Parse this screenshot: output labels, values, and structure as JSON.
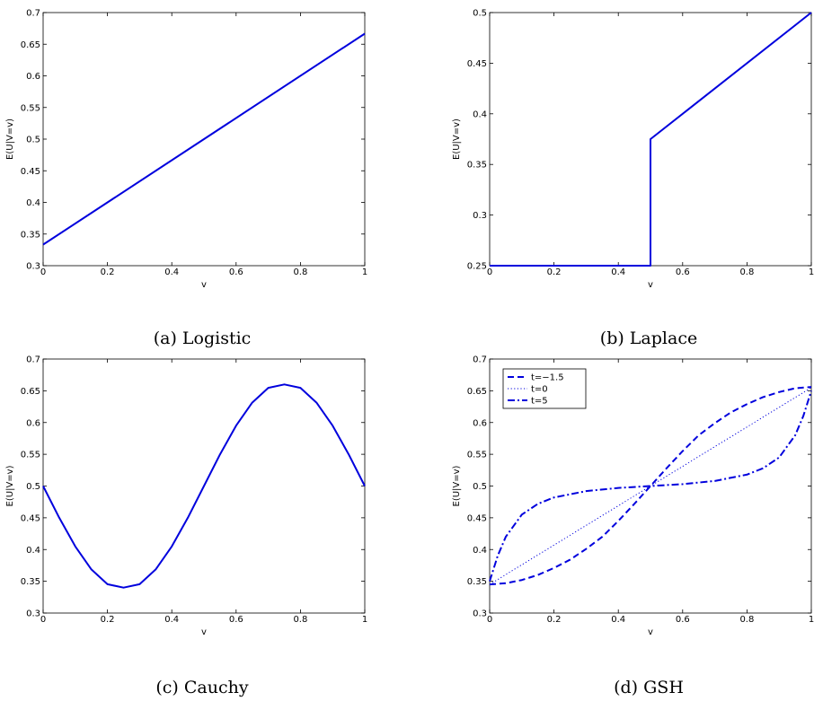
{
  "captions": [
    "(a) Logistic",
    "(b) Laplace",
    "(c) Cauchy",
    "(d) GSH"
  ],
  "chart_data": [
    {
      "type": "line",
      "xlabel": "v",
      "ylabel": "E(U|V=v)",
      "xlim": [
        0,
        1
      ],
      "ylim": [
        0.3,
        0.7
      ],
      "xticks": [
        "0",
        "0.2",
        "0.4",
        "0.6",
        "0.8",
        "1"
      ],
      "yticks": [
        "0.3",
        "0.35",
        "0.4",
        "0.45",
        "0.5",
        "0.55",
        "0.6",
        "0.65",
        "0.7"
      ],
      "series": [
        {
          "x": [
            0,
            1
          ],
          "y": [
            0.3333,
            0.6667
          ],
          "style": "solid"
        }
      ]
    },
    {
      "type": "line",
      "xlabel": "v",
      "ylabel": "E(U|V=v)",
      "xlim": [
        0,
        1
      ],
      "ylim": [
        0.25,
        0.5
      ],
      "xticks": [
        "0",
        "0.2",
        "0.4",
        "0.6",
        "0.8",
        "1"
      ],
      "yticks": [
        "0.25",
        "0.3",
        "0.35",
        "0.4",
        "0.45",
        "0.5"
      ],
      "series": [
        {
          "x": [
            0,
            0.5,
            0.5,
            1
          ],
          "y": [
            0.25,
            0.25,
            0.375,
            0.5
          ],
          "style": "solid"
        }
      ]
    },
    {
      "type": "line",
      "xlabel": "v",
      "ylabel": "E(U|V=v)",
      "xlim": [
        0,
        1
      ],
      "ylim": [
        0.3,
        0.7
      ],
      "xticks": [
        "0",
        "0.2",
        "0.4",
        "0.6",
        "0.8",
        "1"
      ],
      "yticks": [
        "0.3",
        "0.35",
        "0.4",
        "0.45",
        "0.5",
        "0.55",
        "0.6",
        "0.65",
        "0.7"
      ],
      "series": [
        {
          "x": [
            0,
            0.05,
            0.1,
            0.15,
            0.2,
            0.25,
            0.3,
            0.35,
            0.4,
            0.45,
            0.5,
            0.55,
            0.6,
            0.65,
            0.7,
            0.75,
            0.8,
            0.85,
            0.9,
            0.95,
            1
          ],
          "y": [
            0.5,
            0.4501,
            0.4049,
            0.3687,
            0.3454,
            0.34,
            0.3454,
            0.3687,
            0.4049,
            0.4501,
            0.5,
            0.5499,
            0.5951,
            0.6313,
            0.6546,
            0.66,
            0.6546,
            0.6313,
            0.5951,
            0.5499,
            0.5
          ],
          "style": "solid"
        }
      ]
    },
    {
      "type": "line",
      "xlabel": "v",
      "ylabel": "E(U|V=v)",
      "xlim": [
        0,
        1
      ],
      "ylim": [
        0.3,
        0.7
      ],
      "xticks": [
        "0",
        "0.2",
        "0.4",
        "0.6",
        "0.8",
        "1"
      ],
      "yticks": [
        "0.3",
        "0.35",
        "0.4",
        "0.45",
        "0.5",
        "0.55",
        "0.6",
        "0.65",
        "0.7"
      ],
      "legend": "top-left",
      "series": [
        {
          "name": "t=−1.5",
          "style": "dashed",
          "x": [
            0,
            0.05,
            0.1,
            0.15,
            0.2,
            0.25,
            0.3,
            0.35,
            0.4,
            0.45,
            0.5,
            0.55,
            0.6,
            0.65,
            0.7,
            0.75,
            0.8,
            0.85,
            0.9,
            0.95,
            1
          ],
          "y": [
            0.345,
            0.347,
            0.352,
            0.36,
            0.371,
            0.384,
            0.401,
            0.42,
            0.445,
            0.472,
            0.5,
            0.528,
            0.555,
            0.58,
            0.599,
            0.616,
            0.629,
            0.64,
            0.648,
            0.654,
            0.656
          ]
        },
        {
          "name": "t=0",
          "style": "dotted",
          "x": [
            0,
            1
          ],
          "y": [
            0.345,
            0.655
          ]
        },
        {
          "name": "t=5",
          "style": "dashdot",
          "x": [
            0,
            0.025,
            0.05,
            0.1,
            0.15,
            0.2,
            0.3,
            0.4,
            0.5,
            0.6,
            0.7,
            0.8,
            0.85,
            0.9,
            0.95,
            0.975,
            1
          ],
          "y": [
            0.35,
            0.39,
            0.42,
            0.455,
            0.472,
            0.482,
            0.492,
            0.497,
            0.5,
            0.503,
            0.508,
            0.518,
            0.528,
            0.545,
            0.58,
            0.61,
            0.65
          ]
        }
      ]
    }
  ]
}
